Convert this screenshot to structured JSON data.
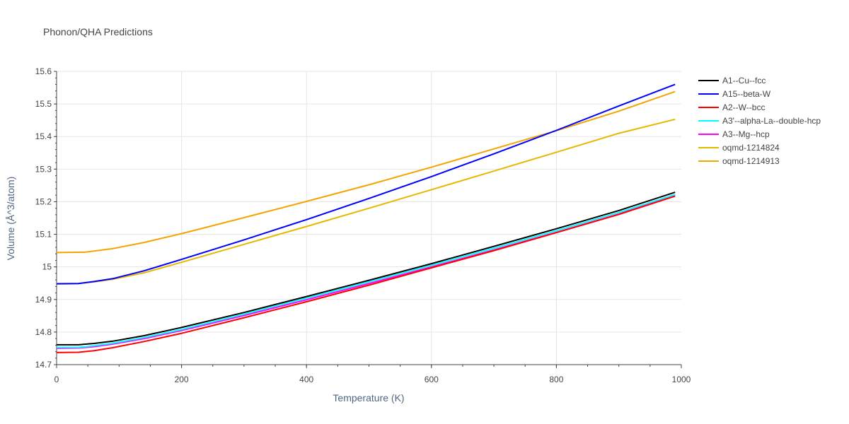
{
  "chart_data": {
    "type": "line",
    "title": "Phonon/QHA Predictions",
    "xlabel": "Temperature (K)",
    "ylabel": "Volume (Å^3/atom)",
    "xlim": [
      0,
      1000
    ],
    "ylim": [
      14.7,
      15.6
    ],
    "xticks": [
      0,
      200,
      400,
      600,
      800,
      1000
    ],
    "yticks": [
      14.7,
      14.8,
      14.9,
      15,
      15.1,
      15.2,
      15.3,
      15.4,
      15.5,
      15.6
    ],
    "xtick_labels": [
      "0",
      "200",
      "400",
      "600",
      "800",
      "1000"
    ],
    "ytick_labels": [
      "14.7",
      "14.8",
      "14.9",
      "15",
      "15.1",
      "15.2",
      "15.3",
      "15.4",
      "15.5",
      "15.6"
    ],
    "grid": true,
    "legend_position": "right",
    "series": [
      {
        "name": "A1--Cu--fcc",
        "color": "#000000",
        "x": [
          0,
          35,
          60,
          90,
          140,
          200,
          300,
          400,
          500,
          600,
          700,
          800,
          900,
          990
        ],
        "y": [
          14.761,
          14.761,
          14.765,
          14.772,
          14.789,
          14.814,
          14.86,
          14.909,
          14.959,
          15.01,
          15.063,
          15.117,
          15.173,
          15.229
        ]
      },
      {
        "name": "A15--beta-W",
        "color": "#0000ff",
        "x": [
          0,
          35,
          60,
          90,
          140,
          200,
          300,
          400,
          500,
          600,
          700,
          800,
          900,
          990
        ],
        "y": [
          14.948,
          14.949,
          14.955,
          14.964,
          14.988,
          15.023,
          15.083,
          15.145,
          15.21,
          15.277,
          15.347,
          15.419,
          15.494,
          15.56
        ]
      },
      {
        "name": "A2--W--bcc",
        "color": "#ff0000",
        "x": [
          0,
          35,
          60,
          90,
          140,
          200,
          300,
          400,
          500,
          600,
          700,
          800,
          900,
          990
        ],
        "y": [
          14.737,
          14.738,
          14.743,
          14.752,
          14.771,
          14.796,
          14.844,
          14.893,
          14.944,
          14.997,
          15.05,
          15.105,
          15.161,
          15.217
        ]
      },
      {
        "name": "A3'--alpha-La--double-hcp",
        "color": "#00ffff",
        "x": [
          0,
          35,
          60,
          90,
          140,
          200,
          300,
          400,
          500,
          600,
          700,
          800,
          900,
          990
        ],
        "y": [
          14.753,
          14.753,
          14.758,
          14.766,
          14.783,
          14.808,
          14.855,
          14.904,
          14.954,
          15.005,
          15.057,
          15.111,
          15.167,
          15.222
        ]
      },
      {
        "name": "A3--Mg--hcp",
        "color": "#ff00ff",
        "x": [
          0,
          35,
          60,
          90,
          140,
          200,
          300,
          400,
          500,
          600,
          700,
          800,
          900,
          990
        ],
        "y": [
          14.75,
          14.751,
          14.755,
          14.763,
          14.78,
          14.805,
          14.851,
          14.899,
          14.949,
          15.0,
          15.052,
          15.106,
          15.162,
          15.22
        ]
      },
      {
        "name": "oqmd-1214824",
        "color": "#e6b800",
        "x": [
          0,
          35,
          60,
          90,
          140,
          200,
          300,
          400,
          500,
          600,
          700,
          800,
          900,
          990
        ],
        "y": [
          14.949,
          14.949,
          14.954,
          14.962,
          14.982,
          15.014,
          15.069,
          15.124,
          15.18,
          15.237,
          15.294,
          15.352,
          15.41,
          15.453
        ]
      },
      {
        "name": "oqmd-1214913",
        "color": "#f5a300",
        "x": [
          0,
          45,
          90,
          140,
          200,
          300,
          400,
          500,
          600,
          700,
          800,
          900,
          990
        ],
        "y": [
          15.044,
          15.045,
          15.056,
          15.075,
          15.102,
          15.151,
          15.201,
          15.252,
          15.306,
          15.362,
          15.418,
          15.478,
          15.538
        ]
      }
    ]
  }
}
